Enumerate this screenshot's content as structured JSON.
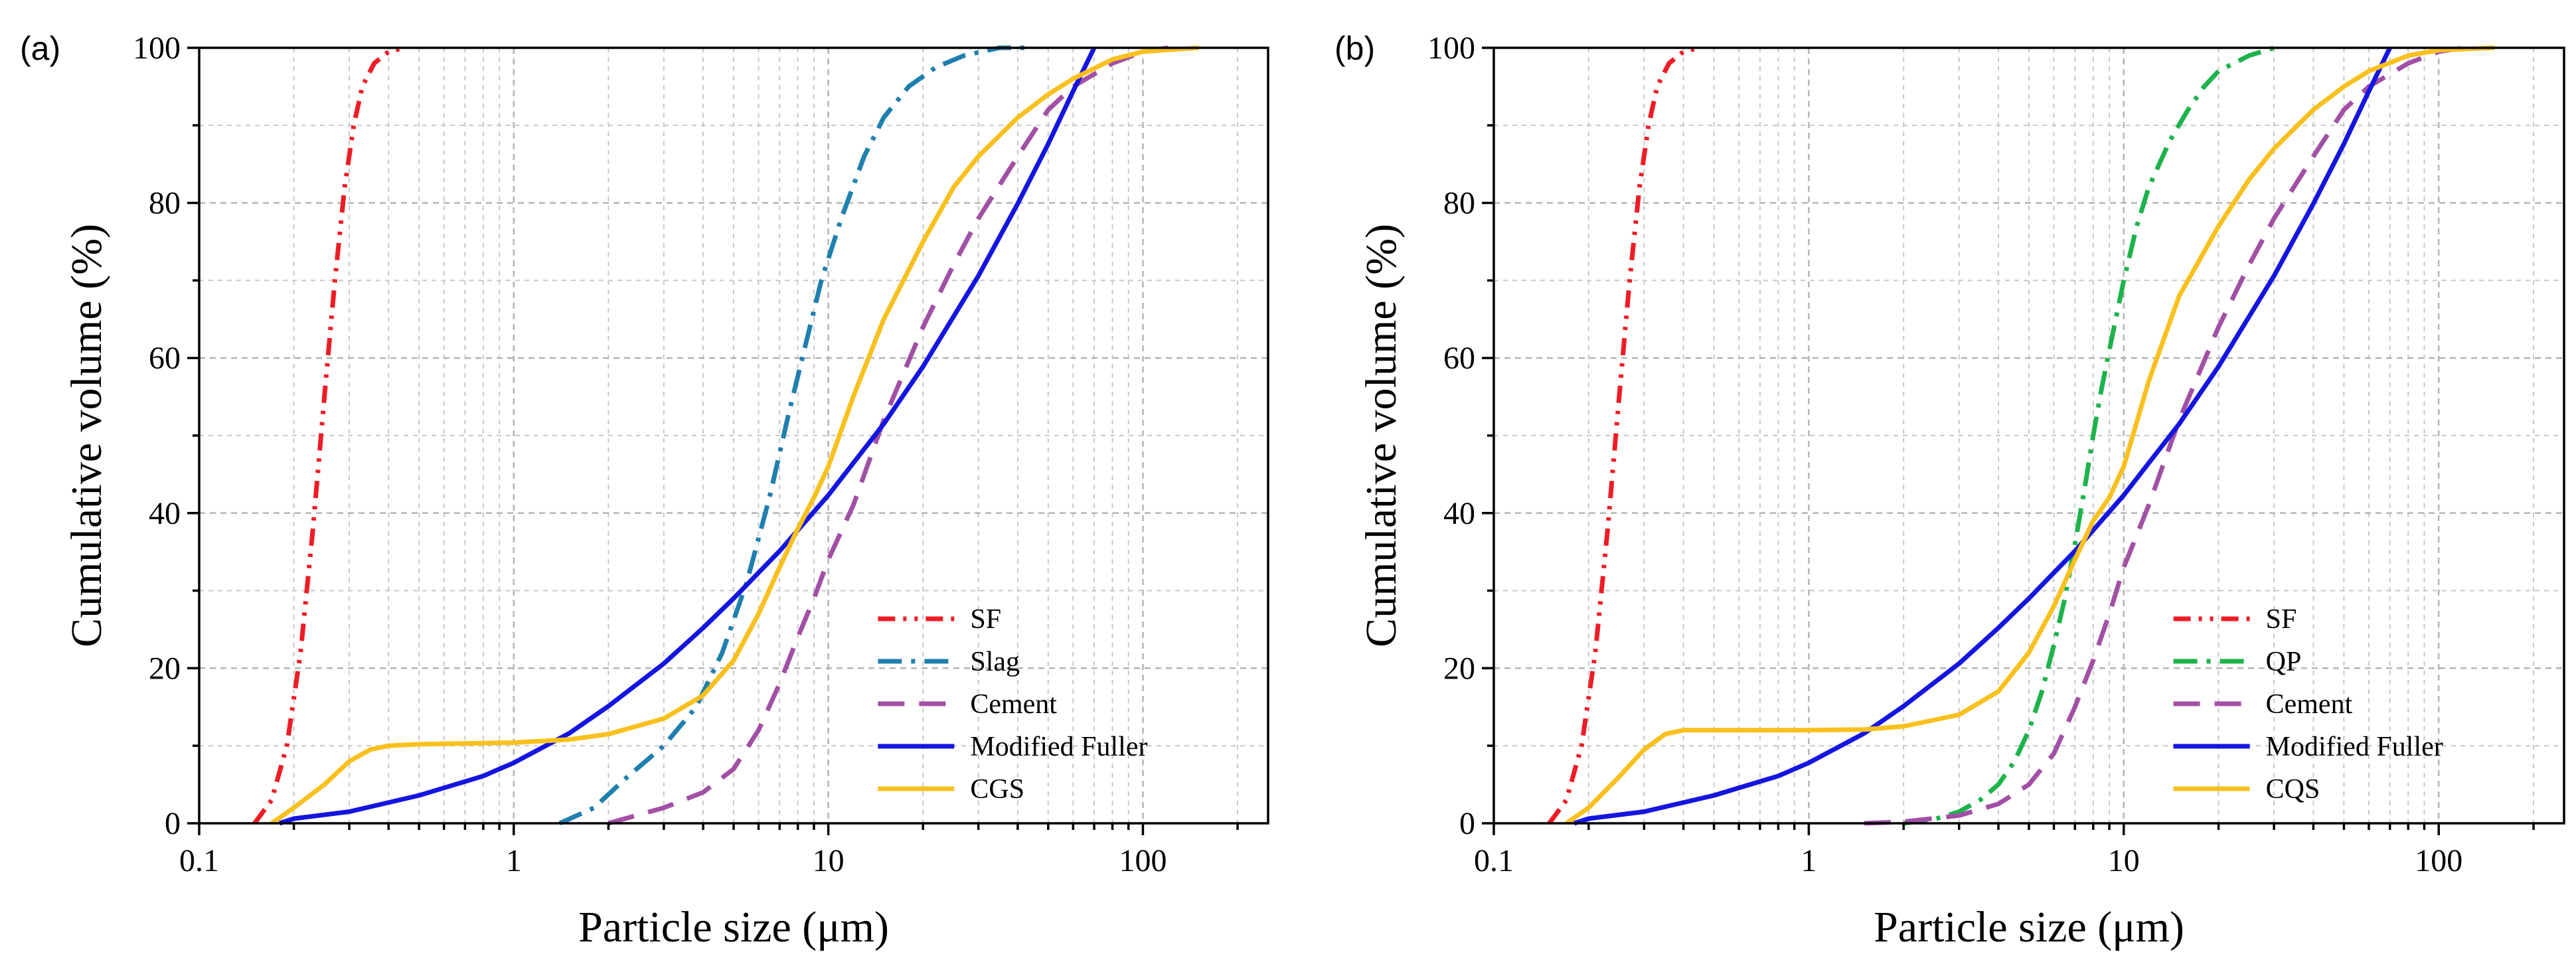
{
  "colors": {
    "SF": "#ee1c25",
    "Slag": "#1f7fae",
    "QP": "#1db34a",
    "Cement": "#a24fa6",
    "Modified Fuller": "#1515e0",
    "CGS": "#f9c01e",
    "CQS": "#f9c01e"
  },
  "chart_data": [
    {
      "panel_label": "(a)",
      "type": "line",
      "xscale": "log",
      "xlabel": "Particle size (μm)",
      "ylabel": "Cumulative volume (%)",
      "xlim": [
        0.1,
        250
      ],
      "ylim": [
        0,
        100
      ],
      "xticks": [
        0.1,
        1,
        10,
        100
      ],
      "xtick_labels": [
        "0.1",
        "1",
        "10",
        "100"
      ],
      "yticks": [
        0,
        20,
        40,
        60,
        80,
        100
      ],
      "ytick_labels": [
        "0",
        "20",
        "40",
        "60",
        "80",
        "100"
      ],
      "grid": true,
      "legend_position": "bottom-right",
      "series": [
        {
          "name": "SF",
          "style": "dash-dot-dot",
          "x": [
            0.15,
            0.17,
            0.19,
            0.21,
            0.23,
            0.25,
            0.27,
            0.29,
            0.31,
            0.33,
            0.36,
            0.4,
            0.45
          ],
          "y": [
            0,
            3,
            10,
            22,
            38,
            55,
            70,
            82,
            90,
            95,
            98,
            99.5,
            100
          ]
        },
        {
          "name": "Slag",
          "style": "dash-dot",
          "x": [
            1.4,
            1.8,
            2.3,
            3,
            3.8,
            4.6,
            5.5,
            6.5,
            7.5,
            8.5,
            9.5,
            11,
            13,
            15,
            18,
            22,
            27,
            35,
            45
          ],
          "y": [
            0,
            2,
            6,
            10,
            15,
            22,
            31,
            42,
            53,
            62,
            70,
            78,
            86,
            91,
            95,
            97.5,
            99,
            100,
            100
          ]
        },
        {
          "name": "Cement",
          "style": "dash",
          "x": [
            2,
            3,
            4,
            5,
            6,
            7,
            8,
            9,
            10,
            12,
            15,
            20,
            25,
            30,
            40,
            50,
            60,
            80,
            100,
            120
          ],
          "y": [
            0,
            2,
            4,
            7,
            12,
            18,
            24,
            29,
            34,
            41,
            52,
            64,
            72,
            78,
            86,
            92,
            95,
            98,
            99.5,
            100
          ]
        },
        {
          "name": "Modified Fuller",
          "style": "solid",
          "x": [
            0.18,
            0.2,
            0.3,
            0.5,
            0.8,
            1,
            1.5,
            2,
            3,
            4,
            5,
            7,
            10,
            15,
            20,
            30,
            40,
            50,
            60,
            70
          ],
          "y": [
            0,
            0.6,
            1.5,
            3.6,
            6.1,
            7.8,
            11.6,
            15.1,
            20.6,
            25.2,
            29,
            35.1,
            42.3,
            51.5,
            58.9,
            70.6,
            79.9,
            87.6,
            94.4,
            100
          ]
        },
        {
          "name": "CGS",
          "style": "solid",
          "x": [
            0.17,
            0.2,
            0.25,
            0.3,
            0.35,
            0.4,
            0.5,
            0.7,
            1,
            1.5,
            2,
            3,
            4,
            5,
            6,
            7,
            8,
            9,
            10,
            12,
            15,
            20,
            25,
            30,
            40,
            50,
            60,
            80,
            100,
            150
          ],
          "y": [
            0,
            2,
            5,
            8,
            9.5,
            10,
            10.2,
            10.3,
            10.4,
            10.8,
            11.5,
            13.5,
            16.5,
            21,
            27,
            33,
            38,
            42,
            46,
            55,
            65,
            75,
            82,
            86,
            91,
            94,
            96,
            98.5,
            99.5,
            100
          ]
        }
      ]
    },
    {
      "panel_label": "(b)",
      "type": "line",
      "xscale": "log",
      "xlabel": "Particle size (μm)",
      "ylabel": "Cumulative volume (%)",
      "xlim": [
        0.1,
        250
      ],
      "ylim": [
        0,
        100
      ],
      "xticks": [
        0.1,
        1,
        10,
        100
      ],
      "xtick_labels": [
        "0.1",
        "1",
        "10",
        "100"
      ],
      "yticks": [
        0,
        20,
        40,
        60,
        80,
        100
      ],
      "ytick_labels": [
        "0",
        "20",
        "40",
        "60",
        "80",
        "100"
      ],
      "grid": true,
      "legend_position": "bottom-right",
      "series": [
        {
          "name": "SF",
          "style": "dash-dot-dot",
          "x": [
            0.15,
            0.17,
            0.19,
            0.21,
            0.23,
            0.25,
            0.27,
            0.29,
            0.31,
            0.33,
            0.36,
            0.4,
            0.45
          ],
          "y": [
            0,
            3,
            10,
            22,
            38,
            55,
            70,
            82,
            90,
            95,
            98,
            99.5,
            100
          ]
        },
        {
          "name": "QP",
          "style": "dash-dot",
          "x": [
            2,
            2.5,
            3,
            3.5,
            4,
            4.5,
            5,
            5.5,
            6,
            6.5,
            7,
            7.5,
            8,
            8.5,
            9,
            10,
            11,
            12,
            14,
            16,
            18,
            20,
            25,
            30
          ],
          "y": [
            0,
            0.5,
            1.5,
            3,
            5,
            8,
            12,
            17,
            23,
            29,
            36,
            43,
            50,
            56,
            61,
            70,
            77,
            82,
            88,
            92,
            95,
            97,
            99,
            100
          ]
        },
        {
          "name": "Cement",
          "style": "dash",
          "x": [
            1.5,
            2,
            3,
            4,
            5,
            6,
            7,
            8,
            9,
            10,
            12,
            15,
            20,
            25,
            30,
            40,
            50,
            60,
            80,
            100,
            120
          ],
          "y": [
            0,
            0.2,
            1,
            2.5,
            5,
            9,
            15,
            21,
            27,
            33,
            41,
            52,
            64,
            72,
            78,
            86,
            92,
            95,
            98,
            99.5,
            100
          ]
        },
        {
          "name": "Modified Fuller",
          "style": "solid",
          "x": [
            0.18,
            0.2,
            0.3,
            0.5,
            0.8,
            1,
            1.5,
            2,
            3,
            4,
            5,
            7,
            10,
            15,
            20,
            30,
            40,
            50,
            60,
            70
          ],
          "y": [
            0,
            0.6,
            1.5,
            3.6,
            6.1,
            7.8,
            11.6,
            15.1,
            20.6,
            25.2,
            29,
            35.1,
            42.3,
            51.5,
            58.9,
            70.6,
            79.9,
            87.6,
            94.4,
            100
          ]
        },
        {
          "name": "CQS",
          "style": "solid",
          "x": [
            0.17,
            0.2,
            0.25,
            0.3,
            0.35,
            0.4,
            0.5,
            0.7,
            1,
            1.5,
            2,
            3,
            4,
            5,
            6,
            7,
            8,
            9,
            10,
            12,
            15,
            20,
            25,
            30,
            40,
            50,
            60,
            80,
            100,
            150
          ],
          "y": [
            0,
            2,
            6,
            9.5,
            11.5,
            12,
            12,
            12,
            12,
            12.1,
            12.5,
            14,
            17,
            22,
            28,
            34,
            39,
            42,
            46,
            57,
            68,
            77,
            83,
            87,
            92,
            95,
            97,
            99,
            99.7,
            100
          ]
        }
      ]
    }
  ]
}
